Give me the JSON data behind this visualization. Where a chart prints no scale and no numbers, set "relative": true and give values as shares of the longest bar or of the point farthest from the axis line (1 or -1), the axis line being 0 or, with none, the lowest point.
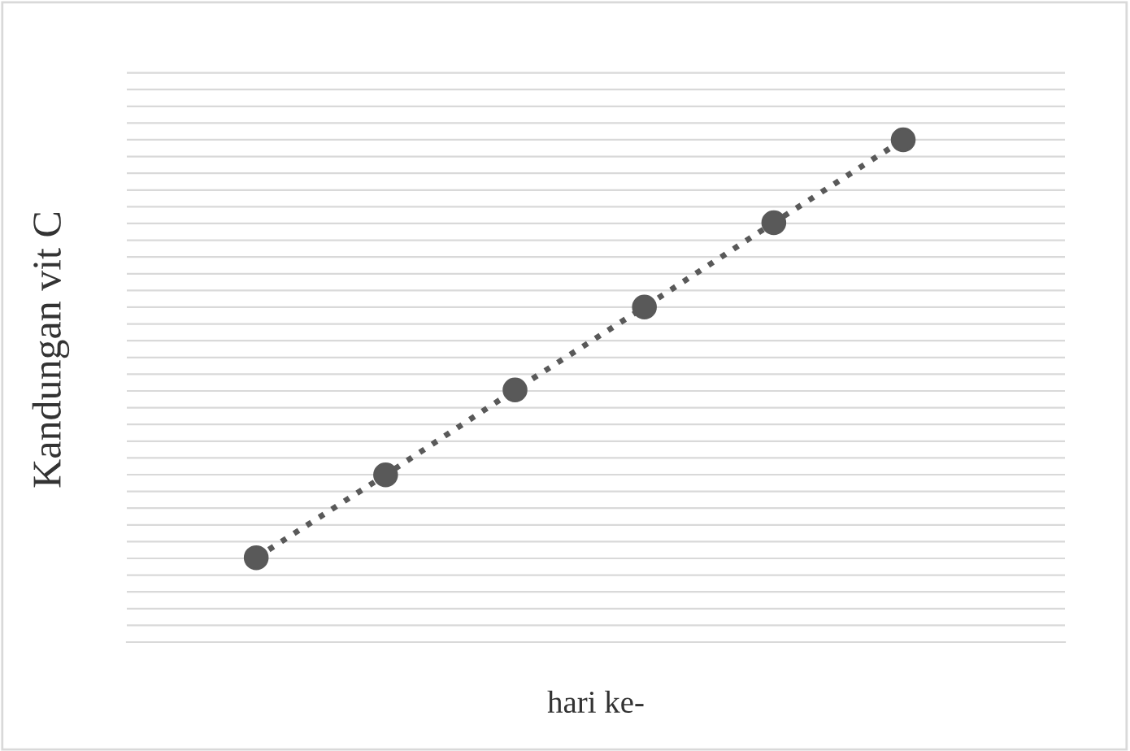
{
  "chart_data": {
    "type": "line",
    "xlabel": "hari ke-",
    "ylabel": "Kandungan vit C",
    "categories": [
      null,
      null,
      null,
      null,
      null,
      null
    ],
    "relative": true,
    "series": [
      {
        "color": "#595959",
        "values": [
          0.168,
          0.333,
          0.502,
          0.667,
          0.835,
          1
        ]
      }
    ],
    "marker": "circle",
    "line_style": "dotted",
    "grid": "y"
  }
}
